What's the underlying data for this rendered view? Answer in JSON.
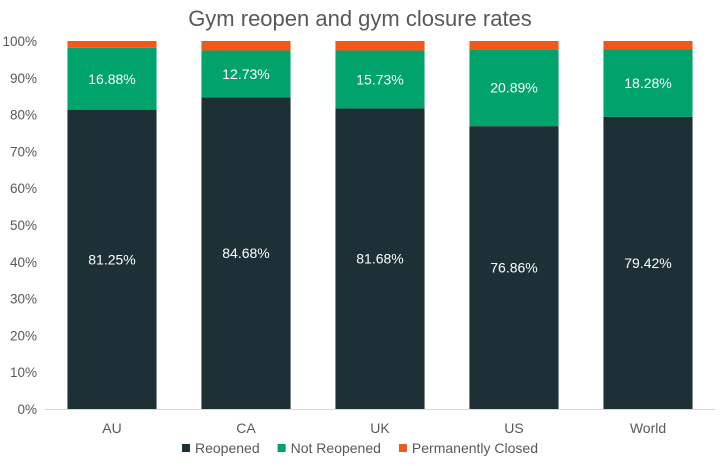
{
  "chart_data": {
    "type": "bar",
    "stacked": true,
    "title": "Gym reopen and gym closure rates",
    "xlabel": "",
    "ylabel": "",
    "ylim": [
      0,
      100
    ],
    "yticks": [
      "0%",
      "10%",
      "20%",
      "30%",
      "40%",
      "50%",
      "60%",
      "70%",
      "80%",
      "90%",
      "100%"
    ],
    "grid": false,
    "legend_position": "bottom",
    "categories": [
      "AU",
      "CA",
      "UK",
      "US",
      "World"
    ],
    "series": [
      {
        "name": "Reopened",
        "color": "#1c3036",
        "label_color": "#ffffff",
        "values": [
          81.25,
          84.68,
          81.68,
          76.86,
          79.42
        ],
        "labels": [
          "81.25%",
          "84.68%",
          "81.68%",
          "76.86%",
          "79.42%"
        ]
      },
      {
        "name": "Not Reopened",
        "color": "#00a36c",
        "label_color": "#ffffff",
        "values": [
          16.88,
          12.73,
          15.73,
          20.89,
          18.28
        ],
        "labels": [
          "16.88%",
          "12.73%",
          "15.73%",
          "20.89%",
          "18.28%"
        ]
      },
      {
        "name": "Permanently Closed",
        "color": "#f2581a",
        "label_color": "#ffffff",
        "values": [
          1.87,
          2.59,
          2.59,
          2.25,
          2.3
        ],
        "labels": [
          "",
          "",
          "",
          "",
          ""
        ]
      }
    ]
  }
}
